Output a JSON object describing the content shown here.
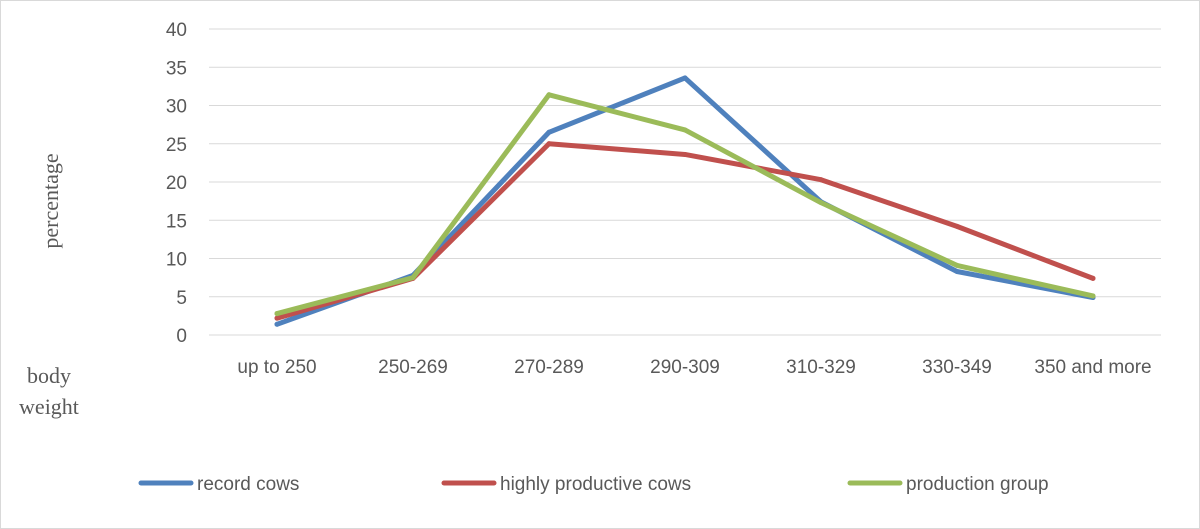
{
  "chart_data": {
    "type": "line",
    "categories": [
      "up to  250",
      "250-269",
      "270-289",
      "290-309",
      "310-329",
      "330-349",
      "350 and more"
    ],
    "series": [
      {
        "name": "record cows",
        "color": "#4f81bd",
        "values": [
          1.4,
          7.8,
          26.5,
          33.6,
          17.4,
          8.3,
          4.9
        ]
      },
      {
        "name": "highly productive cows",
        "color": "#c0504d",
        "values": [
          2.2,
          7.4,
          25.0,
          23.6,
          20.3,
          14.2,
          7.4
        ]
      },
      {
        "name": "production group",
        "color": "#9bbb59",
        "values": [
          2.8,
          7.5,
          31.4,
          26.8,
          17.3,
          9.1,
          5.1
        ]
      }
    ],
    "yticks": [
      "0",
      "5",
      "10",
      "15",
      "20",
      "25",
      "30",
      "35",
      "40"
    ],
    "ylim": [
      0,
      40
    ],
    "ylabel": "percentage",
    "xlabel_line1": "body",
    "xlabel_line2": "weight",
    "grid": true,
    "legend_position": "bottom"
  }
}
